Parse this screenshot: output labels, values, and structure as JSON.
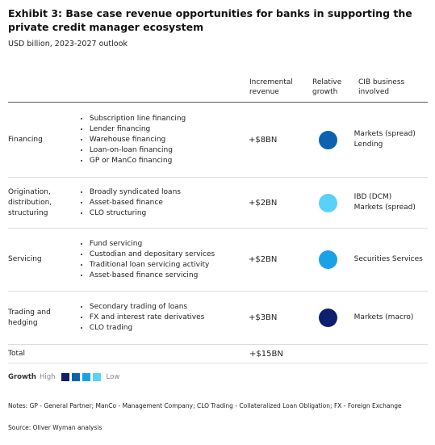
{
  "header": {
    "title": "Exhibit 3: Base case revenue opportunities for banks in supporting the private credit manager ecosystem",
    "subtitle": "USD billion, 2023-2027 outlook"
  },
  "table": {
    "columns": [
      "Incremental revenue",
      "Relative growth",
      "CIB business involved"
    ],
    "rows": [
      {
        "label": "Financing",
        "activities": [
          "Subscription line financing",
          "Lender financing",
          "Warehouse financing",
          "Loan-on-loan financing",
          "GP or ManCo financing"
        ],
        "revenue": "+$8BN",
        "growth_color": "#0b63b0",
        "cib": [
          "Markets (spread)",
          "Lending"
        ]
      },
      {
        "label": "Origination, distribution, structuring",
        "activities": [
          "Broadly syndicated loans",
          "Asset-based finance",
          "CLO structuring"
        ],
        "revenue": "+$2BN",
        "growth_color": "#5ad1f8",
        "cib": [
          "IBD (DCM)",
          "Markets (spread)"
        ]
      },
      {
        "label": "Servicing",
        "activities": [
          "Fund servicing",
          "Custodian and depositary services",
          "Traditional loan servicing activity",
          "Asset-based finance servicing"
        ],
        "revenue": "+$2BN",
        "growth_color": "#1ba1e6",
        "cib": [
          "Securities Services"
        ]
      },
      {
        "label": "Trading and hedging",
        "activities": [
          "Secondary trading of loans",
          "FX and interest rate derivatives",
          "CLO trading"
        ],
        "revenue": "+$3BN",
        "growth_color": "#0d1f6e",
        "cib": [
          "Markets (macro)"
        ]
      }
    ],
    "total": {
      "label": "Total",
      "revenue": "+$15BN"
    }
  },
  "legend": {
    "title": "Growth",
    "high": "High",
    "low": "Low",
    "colors": [
      "#0d1f6e",
      "#0b63b0",
      "#1ba1e6",
      "#5ad1f8"
    ]
  },
  "notes": "Notes: GP - General Partner; ManCo - Management Company; CLO Trading - Collateralized Loan Obligation; FX - Foreign Exchange",
  "source": "Source: Oliver Wyman analysis"
}
